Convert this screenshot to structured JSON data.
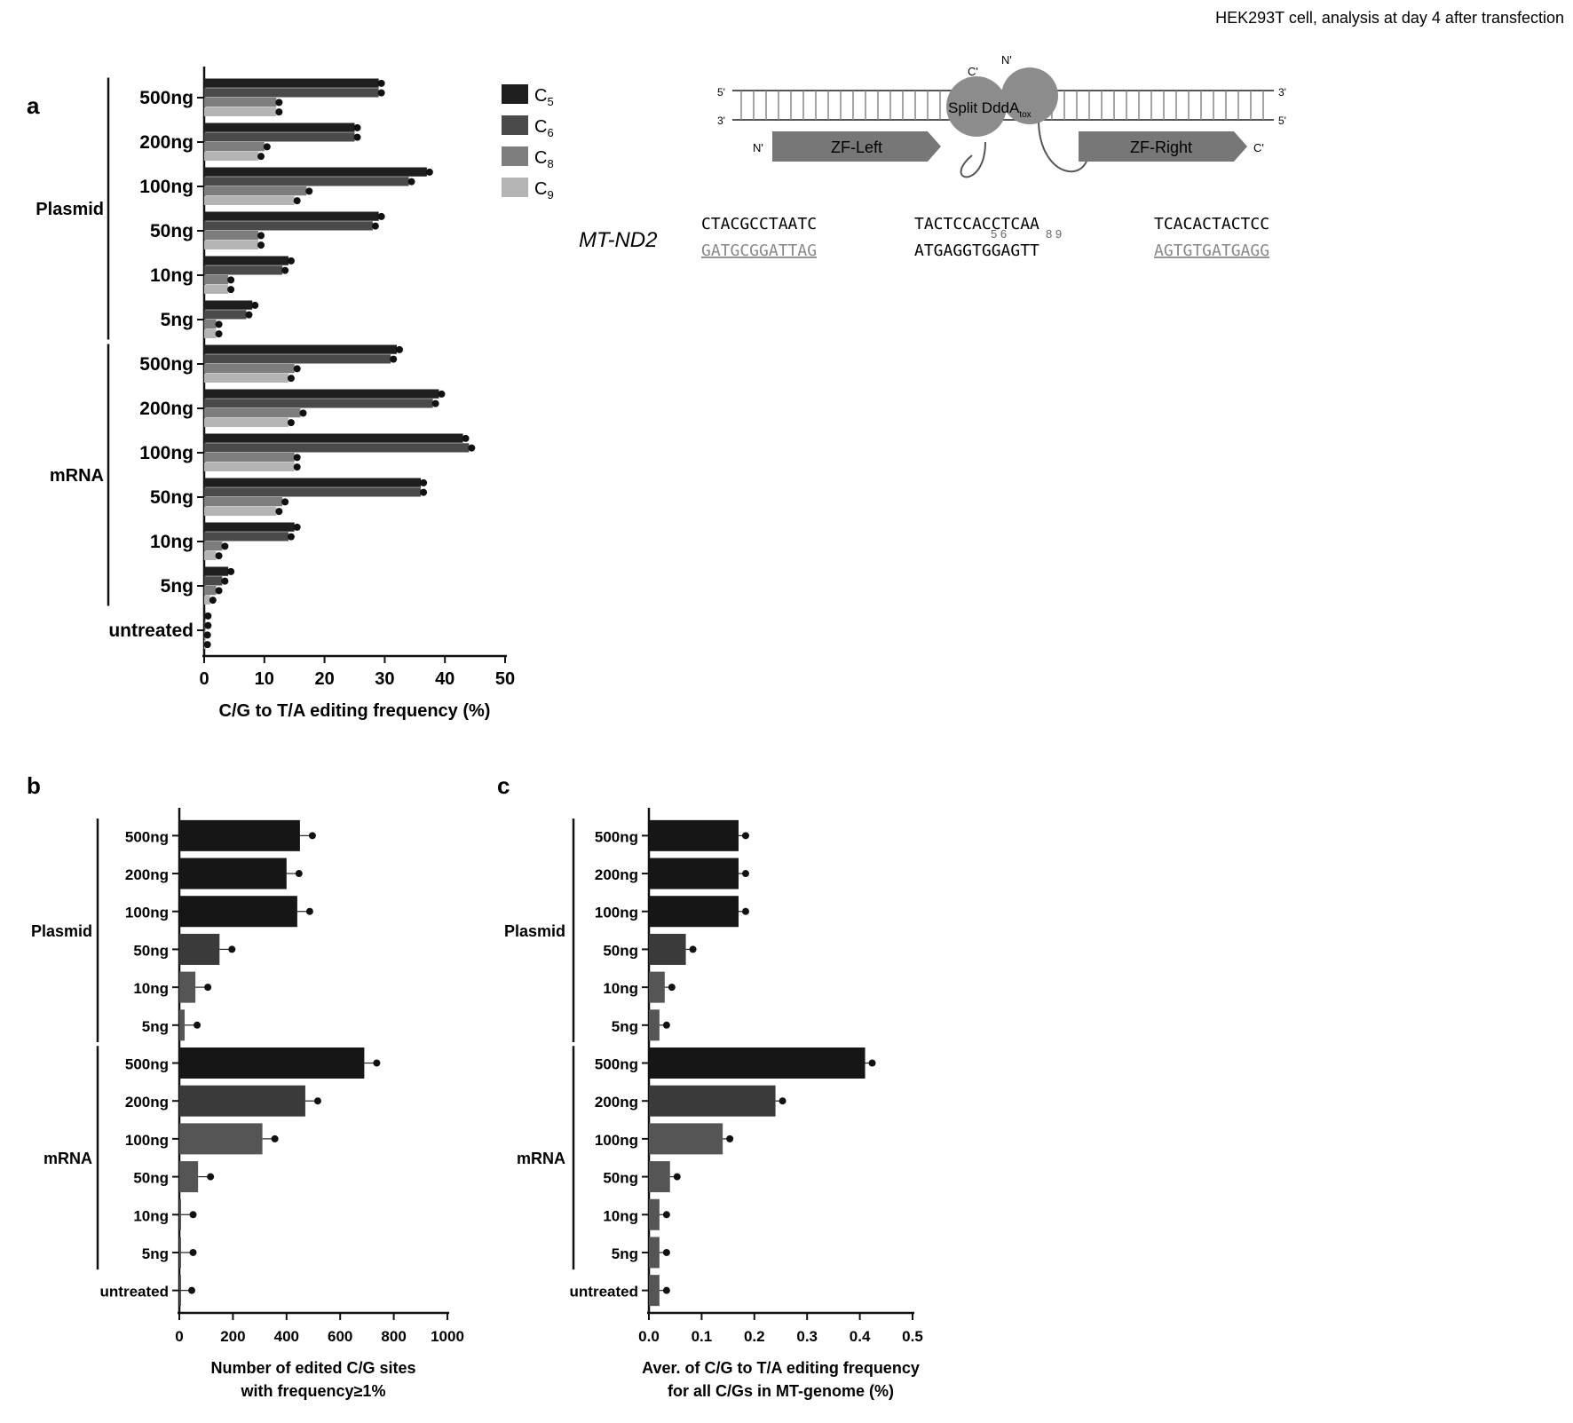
{
  "header": "HEK293T cell, analysis at day 4 after transfection",
  "colors": {
    "C5": "#1e1e1e",
    "C6": "#4a4a4a",
    "C8": "#7d7d7d",
    "C9": "#b4b4b4",
    "mrna500": "#181818",
    "mrna100": "#3c3c3c"
  },
  "diagram": {
    "five_prime": "5'",
    "three_prime": "3'",
    "c_prime": "C'",
    "n_prime": "N'",
    "split": "Split DddA",
    "tox": "tox",
    "zf_left": "ZF-Left",
    "zf_right": "ZF-Right",
    "gene": "MT-ND2",
    "top_seq": [
      "CTACGCCTAATC",
      "TACTCCACCTCAA",
      "TCACACTACTCC"
    ],
    "bottom_seq": [
      "GATGCGGATTAG",
      "ATGAGGTGGAGTT",
      "AGTGTGATGAGG"
    ],
    "pos_labels": [
      "5 6",
      "8 9"
    ]
  },
  "panel_letters": [
    "a",
    "b",
    "c"
  ],
  "chart_data": [
    {
      "type": "bar",
      "orientation": "horizontal",
      "panel": "a",
      "groups": [
        "Plasmid",
        "mRNA"
      ],
      "categories": [
        "500ng",
        "200ng",
        "100ng",
        "50ng",
        "10ng",
        "5ng",
        "500ng",
        "200ng",
        "100ng",
        "50ng",
        "10ng",
        "5ng",
        "untreated"
      ],
      "series": [
        {
          "name": "C5",
          "values": [
            29,
            25,
            37,
            29,
            14,
            8,
            32,
            39,
            43,
            36,
            15,
            4,
            0.2
          ]
        },
        {
          "name": "C6",
          "values": [
            29,
            25,
            34,
            28,
            13,
            7,
            31,
            38,
            44,
            36,
            14,
            3,
            0.2
          ]
        },
        {
          "name": "C8",
          "values": [
            12,
            10,
            17,
            9,
            4,
            2,
            15,
            16,
            15,
            13,
            3,
            2,
            0.1
          ]
        },
        {
          "name": "C9",
          "values": [
            12,
            9,
            15,
            9,
            4,
            2,
            14,
            14,
            15,
            12,
            2,
            1,
            0.1
          ]
        }
      ],
      "xlabel": "C/G to T/A editing frequency (%)",
      "xlim": [
        0,
        50
      ],
      "xticks": [
        0,
        10,
        20,
        30,
        40,
        50
      ]
    },
    {
      "type": "bar",
      "orientation": "horizontal",
      "panel": "b",
      "groups": [
        "Plasmid",
        "mRNA"
      ],
      "categories": [
        "500ng",
        "200ng",
        "100ng",
        "50ng",
        "10ng",
        "5ng",
        "500ng",
        "200ng",
        "100ng",
        "50ng",
        "10ng",
        "5ng",
        "untreated"
      ],
      "values": [
        450,
        400,
        440,
        150,
        60,
        20,
        690,
        470,
        310,
        70,
        5,
        5,
        0
      ],
      "xlabel": "Number of edited C/G sites with frequency≥1%",
      "xlabel_lines": [
        "Number of edited C/G sites",
        "with frequency≥1%"
      ],
      "xlim": [
        0,
        1000
      ],
      "xticks": [
        0,
        200,
        400,
        600,
        800,
        1000
      ]
    },
    {
      "type": "bar",
      "orientation": "horizontal",
      "panel": "c",
      "groups": [
        "Plasmid",
        "mRNA"
      ],
      "categories": [
        "500ng",
        "200ng",
        "100ng",
        "50ng",
        "10ng",
        "5ng",
        "500ng",
        "200ng",
        "100ng",
        "50ng",
        "10ng",
        "5ng",
        "untreated"
      ],
      "values": [
        0.17,
        0.17,
        0.17,
        0.07,
        0.03,
        0.02,
        0.41,
        0.24,
        0.14,
        0.04,
        0.02,
        0.02,
        0.02
      ],
      "xlabel": "Aver. of C/G to T/A editing frequency for all C/Gs in MT-genome (%)",
      "xlabel_lines": [
        "Aver. of C/G to T/A editing frequency",
        "for all C/Gs in MT-genome (%)"
      ],
      "xlim": [
        0,
        0.5
      ],
      "xticks": [
        "0.0",
        "0.1",
        "0.2",
        "0.3",
        "0.4",
        "0.5"
      ]
    }
  ]
}
